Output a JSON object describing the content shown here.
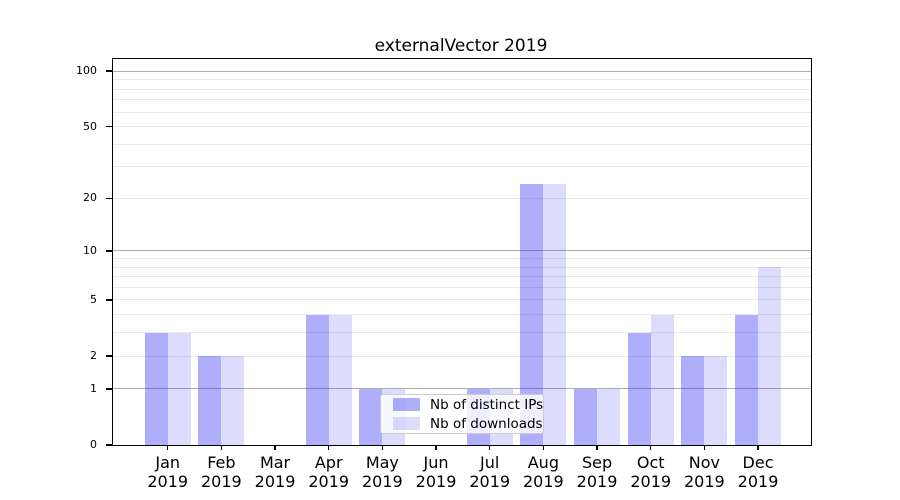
{
  "chart_data": {
    "type": "bar",
    "title": "externalVector 2019",
    "categories": [
      "Jan 2019",
      "Feb 2019",
      "Mar 2019",
      "Apr 2019",
      "May 2019",
      "Jun 2019",
      "Jul 2019",
      "Aug 2019",
      "Sep 2019",
      "Oct 2019",
      "Nov 2019",
      "Dec 2019"
    ],
    "series": [
      {
        "name": "Nb of distinct IPs",
        "color": "rgba(30,30,245,0.36)",
        "values": [
          3,
          2,
          0,
          4,
          1,
          0,
          1,
          24,
          1,
          3,
          2,
          4
        ]
      },
      {
        "name": "Nb of downloads",
        "color": "rgba(30,30,245,0.155)",
        "values": [
          3,
          2,
          0,
          4,
          1,
          0,
          1,
          24,
          1,
          4,
          2,
          8
        ]
      }
    ],
    "y_axis": {
      "scale": "log1p",
      "range": [
        0,
        117
      ],
      "tick_labels": [
        0,
        1,
        2,
        5,
        10,
        20,
        50,
        100
      ],
      "major_gridlines": [
        1,
        10,
        100
      ],
      "minor_gridlines": [
        2,
        3,
        4,
        5,
        6,
        7,
        8,
        9,
        20,
        30,
        40,
        50,
        60,
        70,
        80,
        90
      ]
    },
    "x_axis": {
      "label_format": "two-line month over year"
    },
    "legend": {
      "position": "lower center"
    },
    "colors": {
      "major_grid": "#aeaeae",
      "minor_grid": "#e9e9e9",
      "spine": "#000000",
      "background": "#ffffff"
    }
  }
}
